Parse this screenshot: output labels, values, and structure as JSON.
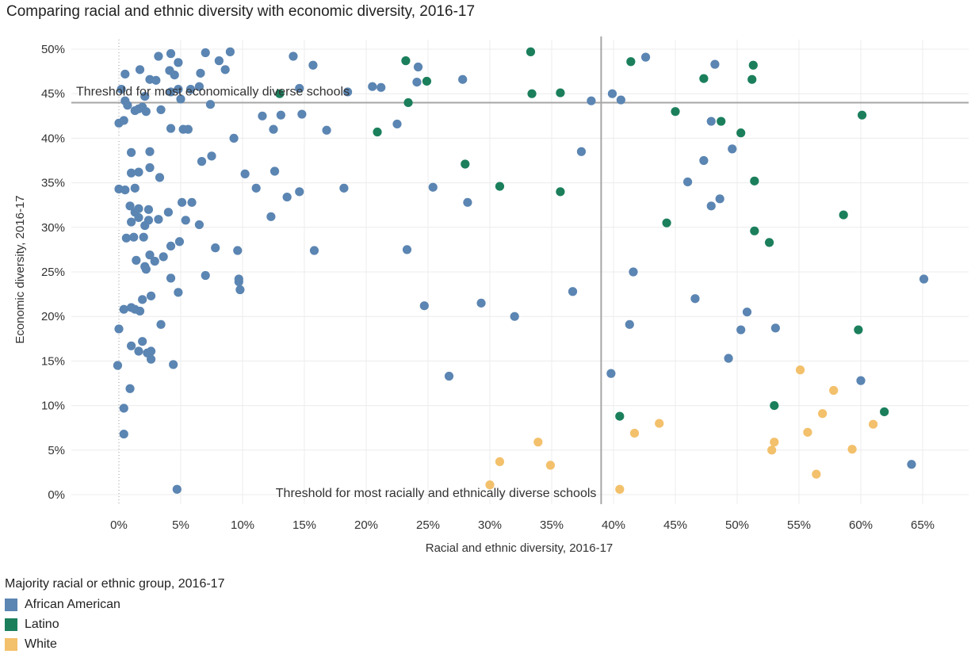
{
  "title": "Comparing racial and ethnic diversity with economic diversity, 2016-17",
  "chart_data": {
    "type": "scatter",
    "xlabel": "Racial and ethnic diversity, 2016-17",
    "ylabel": "Economic diversity, 2016-17",
    "xlim": [
      -3.5,
      69
    ],
    "ylim": [
      -1.2,
      52
    ],
    "xticks": [
      0,
      5,
      10,
      15,
      20,
      25,
      30,
      35,
      40,
      45,
      50,
      55,
      60,
      65
    ],
    "yticks": [
      0,
      5,
      10,
      15,
      20,
      25,
      30,
      35,
      40,
      45,
      50
    ],
    "tick_suffix": "%",
    "grid": true,
    "reference_lines": {
      "horizontal": {
        "y": 44,
        "label": "Threshold for most economically diverse schools"
      },
      "vertical": {
        "x": 39,
        "label": "Threshold for most racially and ethnically diverse schools"
      }
    },
    "legend": {
      "title": "Majority racial or ethnic group, 2016-17",
      "position": "bottom-left",
      "entries": [
        {
          "name": "African American",
          "color": "#5b85b2"
        },
        {
          "name": "Latino",
          "color": "#1b7f5c"
        },
        {
          "name": "White",
          "color": "#f3c06b"
        }
      ]
    },
    "series": [
      {
        "name": "African American",
        "color": "#5b85b2",
        "points": [
          [
            0.5,
            47.2
          ],
          [
            1.7,
            47.7
          ],
          [
            3.2,
            49.2
          ],
          [
            4.1,
            47.6
          ],
          [
            4.2,
            49.5
          ],
          [
            4.5,
            47.1
          ],
          [
            4.8,
            48.5
          ],
          [
            6.6,
            47.3
          ],
          [
            7,
            49.6
          ],
          [
            8.1,
            48.7
          ],
          [
            8.6,
            47.7
          ],
          [
            9,
            49.7
          ],
          [
            0.2,
            45.5
          ],
          [
            2.1,
            44.7
          ],
          [
            2.5,
            46.6
          ],
          [
            3,
            46.5
          ],
          [
            4.2,
            45.2
          ],
          [
            4.8,
            45.5
          ],
          [
            5,
            44.4
          ],
          [
            5.8,
            45.5
          ],
          [
            6.5,
            45.8
          ],
          [
            0.5,
            44.2
          ],
          [
            0.7,
            43.7
          ],
          [
            1.6,
            43.3
          ],
          [
            1.9,
            43.5
          ],
          [
            1.3,
            43.1
          ],
          [
            2.2,
            43
          ],
          [
            3.4,
            43.2
          ],
          [
            7.4,
            43.8
          ],
          [
            0,
            41.7
          ],
          [
            0.4,
            42
          ],
          [
            4.2,
            41.1
          ],
          [
            5.2,
            41
          ],
          [
            5.6,
            41
          ],
          [
            9.3,
            40
          ],
          [
            11.6,
            42.5
          ],
          [
            12.5,
            41
          ],
          [
            13.1,
            42.6
          ],
          [
            14.1,
            49.2
          ],
          [
            14.6,
            45.6
          ],
          [
            14.8,
            42.7
          ],
          [
            15.7,
            48.2
          ],
          [
            16.8,
            40.9
          ],
          [
            18.5,
            45.2
          ],
          [
            20.5,
            45.8
          ],
          [
            21.2,
            45.7
          ],
          [
            22.5,
            41.6
          ],
          [
            24.1,
            46.3
          ],
          [
            24.2,
            48
          ],
          [
            27.8,
            46.6
          ],
          [
            1,
            38.4
          ],
          [
            2.5,
            38.5
          ],
          [
            6.7,
            37.4
          ],
          [
            7.5,
            38
          ],
          [
            2.5,
            36.7
          ],
          [
            1,
            36.1
          ],
          [
            1.6,
            36.2
          ],
          [
            3.3,
            35.6
          ],
          [
            10.2,
            36
          ],
          [
            12.6,
            36.3
          ],
          [
            0,
            34.3
          ],
          [
            0.5,
            34.2
          ],
          [
            1.3,
            34.4
          ],
          [
            11.1,
            34.4
          ],
          [
            13.6,
            33.4
          ],
          [
            14.6,
            34
          ],
          [
            18.2,
            34.4
          ],
          [
            25.4,
            34.5
          ],
          [
            28.2,
            32.8
          ],
          [
            0.9,
            32.4
          ],
          [
            1.6,
            32.1
          ],
          [
            1.3,
            31.7
          ],
          [
            2.4,
            32
          ],
          [
            4,
            31.7
          ],
          [
            5.1,
            32.8
          ],
          [
            5.9,
            32.8
          ],
          [
            1.6,
            31.1
          ],
          [
            1,
            30.6
          ],
          [
            2.1,
            30.2
          ],
          [
            2.4,
            30.8
          ],
          [
            3.2,
            30.9
          ],
          [
            5.4,
            30.8
          ],
          [
            6.5,
            30.3
          ],
          [
            12.3,
            31.2
          ],
          [
            0.6,
            28.8
          ],
          [
            1.2,
            28.9
          ],
          [
            2,
            28.9
          ],
          [
            4.9,
            28.4
          ],
          [
            4.2,
            27.9
          ],
          [
            7.8,
            27.7
          ],
          [
            9.6,
            27.4
          ],
          [
            15.8,
            27.4
          ],
          [
            23.3,
            27.5
          ],
          [
            1.4,
            26.3
          ],
          [
            2.5,
            26.9
          ],
          [
            3.6,
            26.7
          ],
          [
            2.9,
            26.2
          ],
          [
            2.1,
            25.6
          ],
          [
            2.2,
            25.3
          ],
          [
            4.2,
            24.3
          ],
          [
            7,
            24.6
          ],
          [
            9.7,
            24.2
          ],
          [
            9.7,
            23.9
          ],
          [
            9.8,
            23
          ],
          [
            4.8,
            22.7
          ],
          [
            2.6,
            22.3
          ],
          [
            1.9,
            21.9
          ],
          [
            0.4,
            20.8
          ],
          [
            1,
            21
          ],
          [
            1.3,
            20.8
          ],
          [
            1.7,
            20.6
          ],
          [
            24.7,
            21.2
          ],
          [
            29.3,
            21.5
          ],
          [
            32,
            20
          ],
          [
            36.7,
            22.8
          ],
          [
            0,
            18.6
          ],
          [
            3.4,
            19.1
          ],
          [
            1,
            16.7
          ],
          [
            1.9,
            17.2
          ],
          [
            1.6,
            16.1
          ],
          [
            2.3,
            15.9
          ],
          [
            2.6,
            16.1
          ],
          [
            2.6,
            15.2
          ],
          [
            4.4,
            14.6
          ],
          [
            -0.1,
            14.5
          ],
          [
            0.9,
            11.9
          ],
          [
            0.4,
            9.7
          ],
          [
            0.4,
            6.8
          ],
          [
            4.7,
            0.6
          ],
          [
            26.7,
            13.3
          ],
          [
            39.9,
            45
          ],
          [
            40.6,
            44.3
          ],
          [
            42.6,
            49.1
          ],
          [
            48.2,
            48.3
          ],
          [
            37.4,
            38.5
          ],
          [
            47.9,
            41.9
          ],
          [
            47.3,
            37.5
          ],
          [
            49.6,
            38.8
          ],
          [
            46,
            35.1
          ],
          [
            48.6,
            33.2
          ],
          [
            47.9,
            32.4
          ],
          [
            41.6,
            25
          ],
          [
            46.6,
            22
          ],
          [
            50.8,
            20.5
          ],
          [
            41.3,
            19.1
          ],
          [
            50.3,
            18.5
          ],
          [
            53.1,
            18.7
          ],
          [
            49.3,
            15.3
          ],
          [
            39.8,
            13.6
          ],
          [
            60,
            12.8
          ],
          [
            64.1,
            3.4
          ],
          [
            65.1,
            24.2
          ],
          [
            38.2,
            44.2
          ]
        ]
      },
      {
        "name": "Latino",
        "color": "#1b7f5c",
        "points": [
          [
            23.2,
            48.7
          ],
          [
            33.3,
            49.7
          ],
          [
            41.4,
            48.6
          ],
          [
            51.3,
            48.2
          ],
          [
            24.9,
            46.4
          ],
          [
            47.3,
            46.7
          ],
          [
            51.2,
            46.6
          ],
          [
            33.4,
            45
          ],
          [
            35.7,
            45.1
          ],
          [
            13,
            45
          ],
          [
            23.4,
            44
          ],
          [
            45,
            43
          ],
          [
            48.7,
            41.9
          ],
          [
            60.1,
            42.6
          ],
          [
            20.9,
            40.7
          ],
          [
            50.3,
            40.6
          ],
          [
            28,
            37.1
          ],
          [
            30.8,
            34.6
          ],
          [
            35.7,
            34
          ],
          [
            51.4,
            35.2
          ],
          [
            58.6,
            31.4
          ],
          [
            44.3,
            30.5
          ],
          [
            51.4,
            29.6
          ],
          [
            52.6,
            28.3
          ],
          [
            59.8,
            18.5
          ],
          [
            53,
            10
          ],
          [
            40.5,
            8.8
          ],
          [
            61.9,
            9.3
          ]
        ]
      },
      {
        "name": "White",
        "color": "#f3c06b",
        "points": [
          [
            55.1,
            14
          ],
          [
            57.8,
            11.7
          ],
          [
            56.9,
            9.1
          ],
          [
            61,
            7.9
          ],
          [
            55.7,
            7
          ],
          [
            53,
            5.9
          ],
          [
            52.8,
            5
          ],
          [
            59.3,
            5.1
          ],
          [
            56.4,
            2.3
          ],
          [
            43.7,
            8
          ],
          [
            41.7,
            6.9
          ],
          [
            33.9,
            5.9
          ],
          [
            34.9,
            3.3
          ],
          [
            30.8,
            3.7
          ],
          [
            30,
            1.1
          ],
          [
            40.5,
            0.6
          ]
        ]
      }
    ]
  }
}
